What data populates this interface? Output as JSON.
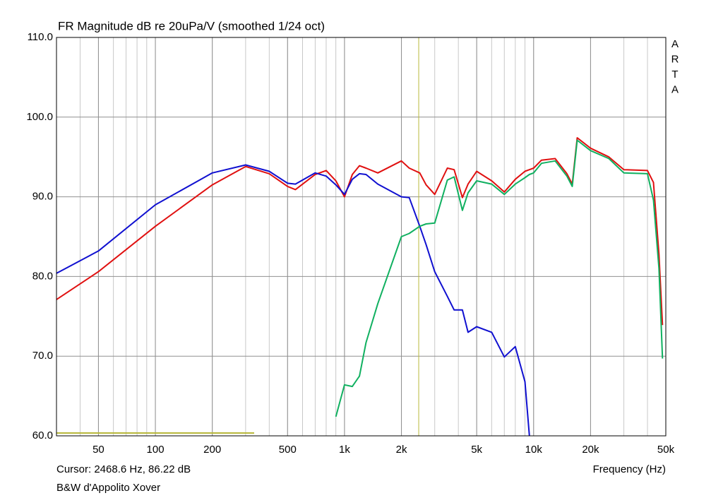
{
  "chart_data": {
    "type": "line",
    "title": "FR Magnitude dB re 20uPa/V (smoothed 1/24 oct)",
    "subtitle": "B&W d'Appolito Xover",
    "x_label": "Frequency (Hz)",
    "watermark": "ARTA",
    "cursor": {
      "label": "Cursor: 2468.6 Hz, 86.22 dB",
      "x": 2468.6,
      "color": "#b8b83c"
    },
    "log_x": true,
    "grid": true,
    "xlim": [
      30,
      50000
    ],
    "ylim": [
      60,
      110
    ],
    "xticks": [
      50,
      100,
      200,
      500,
      {
        "value": 1000,
        "label": "1k"
      },
      {
        "value": 2000,
        "label": "2k"
      },
      {
        "value": 5000,
        "label": "5k"
      },
      {
        "value": 10000,
        "label": "10k"
      },
      {
        "value": 20000,
        "label": "20k"
      },
      {
        "value": 50000,
        "label": "50k"
      }
    ],
    "yticks": [
      {
        "value": 60,
        "label": "60.0"
      },
      {
        "value": 70,
        "label": "70.0"
      },
      {
        "value": 80,
        "label": "80.0"
      },
      {
        "value": 90,
        "label": "90.0"
      },
      {
        "value": 100,
        "label": "100.0"
      },
      {
        "value": 110,
        "label": "110.0"
      }
    ],
    "x": [
      30,
      50,
      100,
      200,
      300,
      400,
      500,
      550,
      700,
      800,
      900,
      1000,
      1100,
      1200,
      1300,
      1500,
      2000,
      2200,
      2500,
      2700,
      3000,
      3500,
      3800,
      4200,
      4500,
      5000,
      6000,
      7000,
      8000,
      9000,
      9500,
      10000,
      11000,
      13000,
      15000,
      16000,
      17000,
      20000,
      25000,
      30000,
      40000,
      43000,
      46000,
      48000
    ],
    "series": [
      {
        "color": "#e01010",
        "values": [
          77.1,
          80.6,
          86.3,
          91.5,
          93.8,
          92.9,
          91.3,
          90.9,
          92.8,
          93.3,
          92.0,
          90.0,
          92.8,
          93.9,
          93.6,
          93.0,
          94.5,
          93.6,
          93.0,
          91.5,
          90.3,
          93.6,
          93.4,
          89.9,
          91.6,
          93.2,
          92.0,
          90.6,
          92.2,
          93.2,
          93.4,
          93.6,
          94.6,
          94.8,
          92.9,
          91.6,
          97.4,
          96.1,
          95.0,
          93.4,
          93.3,
          91.8,
          82.8,
          73.9
        ]
      },
      {
        "color": "#1010d0",
        "values": [
          80.4,
          83.2,
          89.0,
          93.0,
          94.0,
          93.2,
          91.7,
          91.6,
          93.0,
          92.6,
          91.5,
          90.3,
          92.2,
          92.9,
          92.8,
          91.6,
          90.0,
          89.9,
          86.3,
          84.0,
          80.6,
          77.5,
          75.8,
          75.8,
          73.0,
          73.7,
          73.0,
          69.9,
          71.2,
          66.8,
          60.0,
          null,
          null,
          null,
          null,
          null,
          null,
          null,
          null,
          null,
          null,
          null,
          null,
          null
        ]
      },
      {
        "color": "#10b060",
        "values": [
          null,
          null,
          null,
          null,
          null,
          null,
          null,
          null,
          null,
          null,
          62.4,
          66.4,
          66.2,
          67.5,
          71.7,
          76.6,
          85.0,
          85.4,
          86.3,
          86.6,
          86.7,
          92.1,
          92.5,
          88.3,
          90.5,
          92.0,
          91.6,
          90.3,
          91.6,
          92.4,
          92.8,
          93.0,
          94.2,
          94.5,
          92.6,
          91.3,
          97.1,
          95.8,
          94.8,
          93.0,
          92.9,
          89.6,
          81.0,
          69.7
        ]
      }
    ]
  }
}
